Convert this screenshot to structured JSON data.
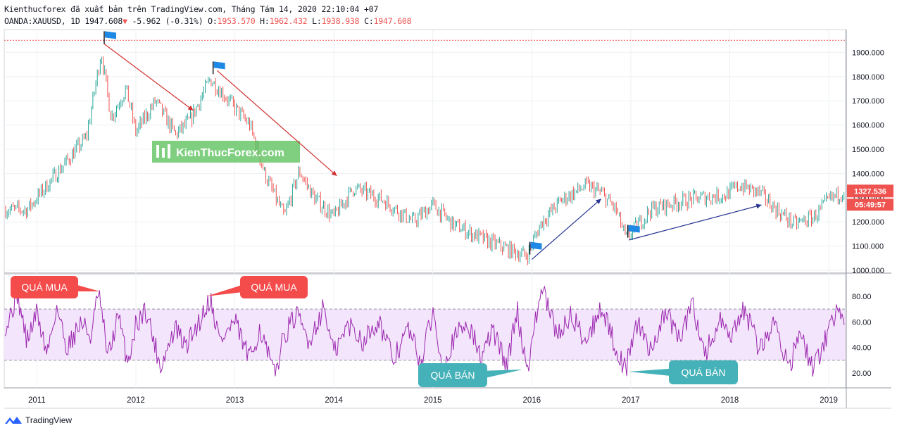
{
  "header": {
    "line1": "Kienthucforex đã xuất bản trên TradingView.com, Tháng Tám 14, 2020 22:10:04 +07",
    "symbol": "OANDA:XAUUSD, 1D",
    "last": "1947.608",
    "change_arrow": "▼",
    "change": "-5.962 (-0.31%)",
    "o_label": "O:",
    "o": "1953.570",
    "h_label": "H:",
    "h": "1962.432",
    "l_label": "L:",
    "l": "1938.938",
    "c_label": "C:",
    "c": "1947.608"
  },
  "watermark": "KienThucForex.com",
  "price_badge": "1327.536",
  "time_badge": "05:49:57",
  "annotations": {
    "overbought_1": "QUÁ MUA",
    "overbought_2": "QUÁ MUA",
    "oversold_1": "QUÁ BÁN",
    "oversold_2": "QUÁ BÁN"
  },
  "footer_brand": "TradingView",
  "colors": {
    "up": "#26a69a",
    "down": "#ef5350",
    "rsi_line": "#9c27b0",
    "rsi_band": "#f3e5fb",
    "overbought_label": "#f44b4b",
    "oversold_label": "#45b1b8",
    "arrow_red": "#d32f2f",
    "arrow_blue": "#283593",
    "flag": "#1e88e5",
    "badge": "#ef5350"
  },
  "chart_data": [
    {
      "type": "line",
      "description_note": "",
      "x": [
        2010.9,
        2011.2,
        2011.5,
        2011.65,
        2011.75,
        2011.9,
        2012.0,
        2012.2,
        2012.4,
        2012.55,
        2012.75,
        2012.9,
        2013.0,
        2013.15,
        2013.3,
        2013.5,
        2013.65,
        2013.8,
        2014.0,
        2014.2,
        2014.5,
        2014.8,
        2015.0,
        2015.2,
        2015.5,
        2015.8,
        2015.95,
        2016.1,
        2016.3,
        2016.55,
        2016.7,
        2016.85,
        2016.95,
        2017.2,
        2017.45,
        2017.7,
        2017.95,
        2018.1,
        2018.3,
        2018.5,
        2018.65,
        2018.85,
        2019.0,
        2019.15
      ],
      "values": [
        1250,
        1400,
        1550,
        1900,
        1630,
        1750,
        1570,
        1700,
        1560,
        1620,
        1790,
        1720,
        1670,
        1600,
        1400,
        1220,
        1410,
        1300,
        1220,
        1340,
        1290,
        1200,
        1270,
        1190,
        1130,
        1080,
        1060,
        1200,
        1290,
        1350,
        1320,
        1250,
        1130,
        1250,
        1280,
        1300,
        1310,
        1350,
        1320,
        1240,
        1190,
        1220,
        1290,
        1327
      ],
      "xlabel": "",
      "ylabel": "",
      "x_ticks": [
        "2011",
        "2012",
        "2013",
        "2014",
        "2015",
        "2016",
        "2017",
        "2018",
        "2019"
      ],
      "y_ticks": [
        "1000.000",
        "1100.000",
        "1200.000",
        "1300.000",
        "1400.000",
        "1500.000",
        "1600.000",
        "1700.000",
        "1800.000",
        "1900.000"
      ],
      "xlim": [
        2010.67,
        2019.17
      ],
      "ylim": [
        1000,
        1950
      ],
      "last_price": 1327.536,
      "hline": 1950
    },
    {
      "type": "line",
      "x": [
        2010.7,
        2010.8,
        2010.9,
        2011.0,
        2011.1,
        2011.2,
        2011.3,
        2011.45,
        2011.55,
        2011.62,
        2011.72,
        2011.82,
        2011.92,
        2012.0,
        2012.1,
        2012.25,
        2012.4,
        2012.5,
        2012.65,
        2012.75,
        2012.85,
        2013.0,
        2013.15,
        2013.25,
        2013.4,
        2013.5,
        2013.62,
        2013.75,
        2013.9,
        2014.0,
        2014.15,
        2014.3,
        2014.45,
        2014.6,
        2014.75,
        2014.88,
        2015.0,
        2015.1,
        2015.2,
        2015.35,
        2015.5,
        2015.6,
        2015.75,
        2015.85,
        2015.95,
        2016.1,
        2016.25,
        2016.4,
        2016.55,
        2016.7,
        2016.85,
        2016.95,
        2017.05,
        2017.2,
        2017.35,
        2017.5,
        2017.62,
        2017.75,
        2017.9,
        2018.0,
        2018.15,
        2018.3,
        2018.45,
        2018.6,
        2018.7,
        2018.85,
        2019.0,
        2019.1,
        2019.17
      ],
      "values": [
        58,
        82,
        45,
        68,
        35,
        72,
        40,
        60,
        48,
        84,
        32,
        65,
        28,
        58,
        70,
        25,
        55,
        40,
        62,
        79,
        45,
        60,
        30,
        55,
        18,
        50,
        65,
        45,
        72,
        35,
        58,
        45,
        62,
        30,
        55,
        28,
        68,
        25,
        45,
        60,
        30,
        55,
        25,
        70,
        22,
        87,
        50,
        65,
        45,
        72,
        40,
        22,
        60,
        38,
        68,
        45,
        75,
        35,
        60,
        45,
        70,
        38,
        60,
        25,
        50,
        22,
        55,
        72,
        62
      ],
      "xlabel": "",
      "ylabel": "",
      "y_ticks": [
        "20.00",
        "40.00",
        "60.00",
        "80.00"
      ],
      "ylim": [
        8,
        92
      ],
      "band": [
        30,
        70
      ]
    }
  ]
}
